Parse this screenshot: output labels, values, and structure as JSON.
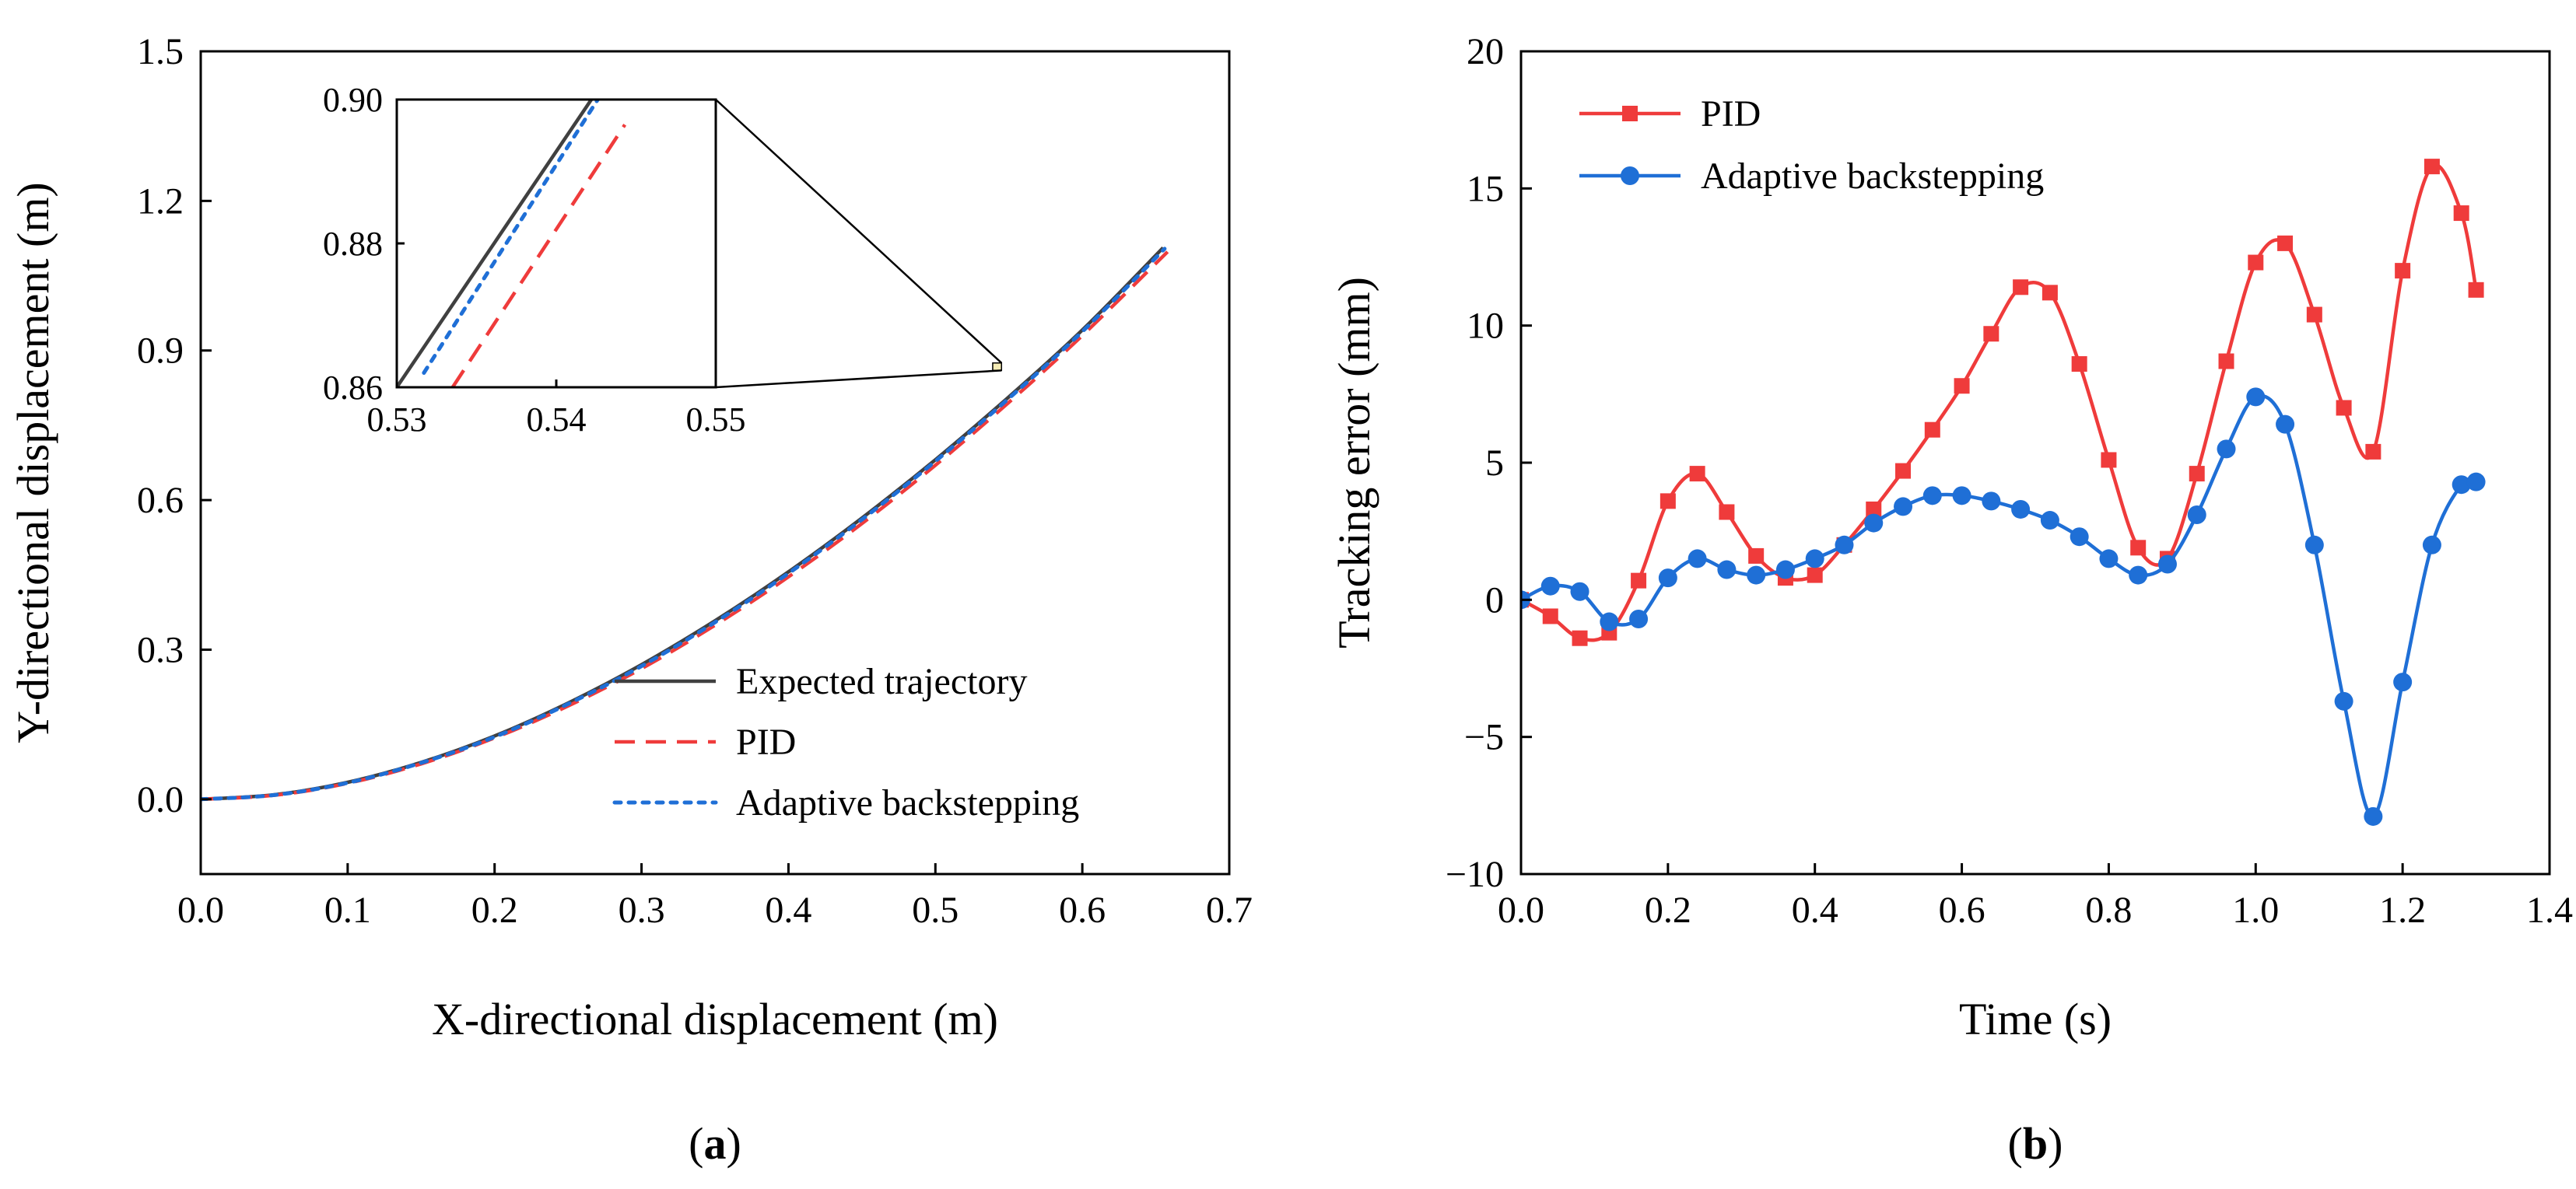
{
  "colors": {
    "expected": "#404040",
    "pid": "#ef3b3b",
    "adaptive": "#1f6fd6",
    "axis": "#000000"
  },
  "chart_data": [
    {
      "type": "line",
      "panel_label": "(a)",
      "panel_letter": "a",
      "xlabel": "X-directional displacement (m)",
      "ylabel": "Y-directional displacement (m)",
      "xlim": [
        0,
        0.7
      ],
      "ylim": [
        -0.15,
        1.5
      ],
      "xticks": [
        "0.0",
        "0.1",
        "0.2",
        "0.3",
        "0.4",
        "0.5",
        "0.6",
        "0.7"
      ],
      "yticks": [
        "0.0",
        "0.3",
        "0.6",
        "0.9",
        "1.2",
        "1.5"
      ],
      "legend_position": "bottom-right",
      "series": [
        {
          "name": "Expected trajectory",
          "style": "solid",
          "x": [
            0,
            0.05,
            0.1,
            0.15,
            0.2,
            0.25,
            0.3,
            0.35,
            0.4,
            0.45,
            0.5,
            0.55,
            0.6,
            0.655
          ],
          "y": [
            0,
            0.009,
            0.034,
            0.074,
            0.127,
            0.193,
            0.27,
            0.358,
            0.456,
            0.564,
            0.681,
            0.807,
            0.941,
            1.106
          ]
        },
        {
          "name": "PID",
          "style": "dashed",
          "x": [
            0,
            0.05,
            0.1,
            0.15,
            0.2,
            0.25,
            0.3,
            0.35,
            0.4,
            0.45,
            0.5,
            0.55,
            0.6,
            0.658
          ],
          "y": [
            0,
            0.008,
            0.032,
            0.071,
            0.123,
            0.187,
            0.262,
            0.349,
            0.446,
            0.553,
            0.67,
            0.796,
            0.93,
            1.098
          ]
        },
        {
          "name": "Adaptive backstepping",
          "style": "dotted",
          "x": [
            0,
            0.05,
            0.1,
            0.15,
            0.2,
            0.25,
            0.3,
            0.35,
            0.4,
            0.45,
            0.5,
            0.55,
            0.6,
            0.656
          ],
          "y": [
            0,
            0.0085,
            0.033,
            0.073,
            0.125,
            0.191,
            0.267,
            0.355,
            0.453,
            0.561,
            0.678,
            0.804,
            0.938,
            1.104
          ]
        }
      ],
      "inset": {
        "xlim": [
          0.53,
          0.55
        ],
        "ylim": [
          0.86,
          0.9
        ],
        "xticks": [
          "0.53",
          "0.54",
          "0.55"
        ],
        "yticks": [
          "0.86",
          "0.88",
          "0.90"
        ],
        "zoom_region": {
          "x": [
            0.539,
            0.545
          ],
          "y": [
            0.86,
            0.875
          ]
        },
        "series": [
          {
            "name": "Expected trajectory",
            "x": [
              0.53,
              0.5422
            ],
            "y": [
              0.86,
              0.9
            ]
          },
          {
            "name": "PID",
            "x": [
              0.5335,
              0.5443
            ],
            "y": [
              0.86,
              0.8965
            ]
          },
          {
            "name": "Adaptive backstepping",
            "x": [
              0.5317,
              0.5426
            ],
            "y": [
              0.862,
              0.9
            ]
          }
        ]
      }
    },
    {
      "type": "line",
      "panel_label": "(b)",
      "panel_letter": "b",
      "xlabel": "Time (s)",
      "ylabel": "Tracking error (mm)",
      "xlim": [
        0,
        1.4
      ],
      "ylim": [
        -10,
        20
      ],
      "xticks": [
        "0.0",
        "0.2",
        "0.4",
        "0.6",
        "0.8",
        "1.0",
        "1.2",
        "1.4"
      ],
      "yticks": [
        "−10",
        "−5",
        "0",
        "5",
        "10",
        "15",
        "20"
      ],
      "legend_position": "top-left",
      "series": [
        {
          "name": "PID",
          "marker": "square",
          "x": [
            0,
            0.04,
            0.08,
            0.12,
            0.16,
            0.2,
            0.24,
            0.28,
            0.32,
            0.36,
            0.4,
            0.44,
            0.48,
            0.52,
            0.56,
            0.6,
            0.64,
            0.68,
            0.72,
            0.76,
            0.8,
            0.84,
            0.88,
            0.92,
            0.96,
            1.0,
            1.04,
            1.08,
            1.12,
            1.16,
            1.2,
            1.24,
            1.28,
            1.3
          ],
          "y": [
            0,
            -0.6,
            -1.4,
            -1.2,
            0.7,
            3.6,
            4.6,
            3.2,
            1.6,
            0.8,
            0.9,
            2.0,
            3.3,
            4.7,
            6.2,
            7.8,
            9.7,
            11.4,
            11.2,
            8.6,
            5.1,
            1.9,
            1.5,
            4.6,
            8.7,
            12.3,
            13.0,
            10.4,
            7.0,
            5.4,
            12.0,
            15.8,
            14.1,
            11.3
          ]
        },
        {
          "name": "Adaptive backstepping",
          "marker": "circle",
          "x": [
            0,
            0.04,
            0.08,
            0.12,
            0.16,
            0.2,
            0.24,
            0.28,
            0.32,
            0.36,
            0.4,
            0.44,
            0.48,
            0.52,
            0.56,
            0.6,
            0.64,
            0.68,
            0.72,
            0.76,
            0.8,
            0.84,
            0.88,
            0.92,
            0.96,
            1.0,
            1.04,
            1.08,
            1.12,
            1.16,
            1.2,
            1.24,
            1.28,
            1.3
          ],
          "y": [
            0,
            0.5,
            0.3,
            -0.8,
            -0.7,
            0.8,
            1.5,
            1.1,
            0.9,
            1.1,
            1.5,
            2.0,
            2.8,
            3.4,
            3.8,
            3.8,
            3.6,
            3.3,
            2.9,
            2.3,
            1.5,
            0.9,
            1.3,
            3.1,
            5.5,
            7.4,
            6.4,
            2.0,
            -3.7,
            -7.9,
            -3.0,
            2.0,
            4.2,
            4.3
          ]
        }
      ]
    }
  ]
}
